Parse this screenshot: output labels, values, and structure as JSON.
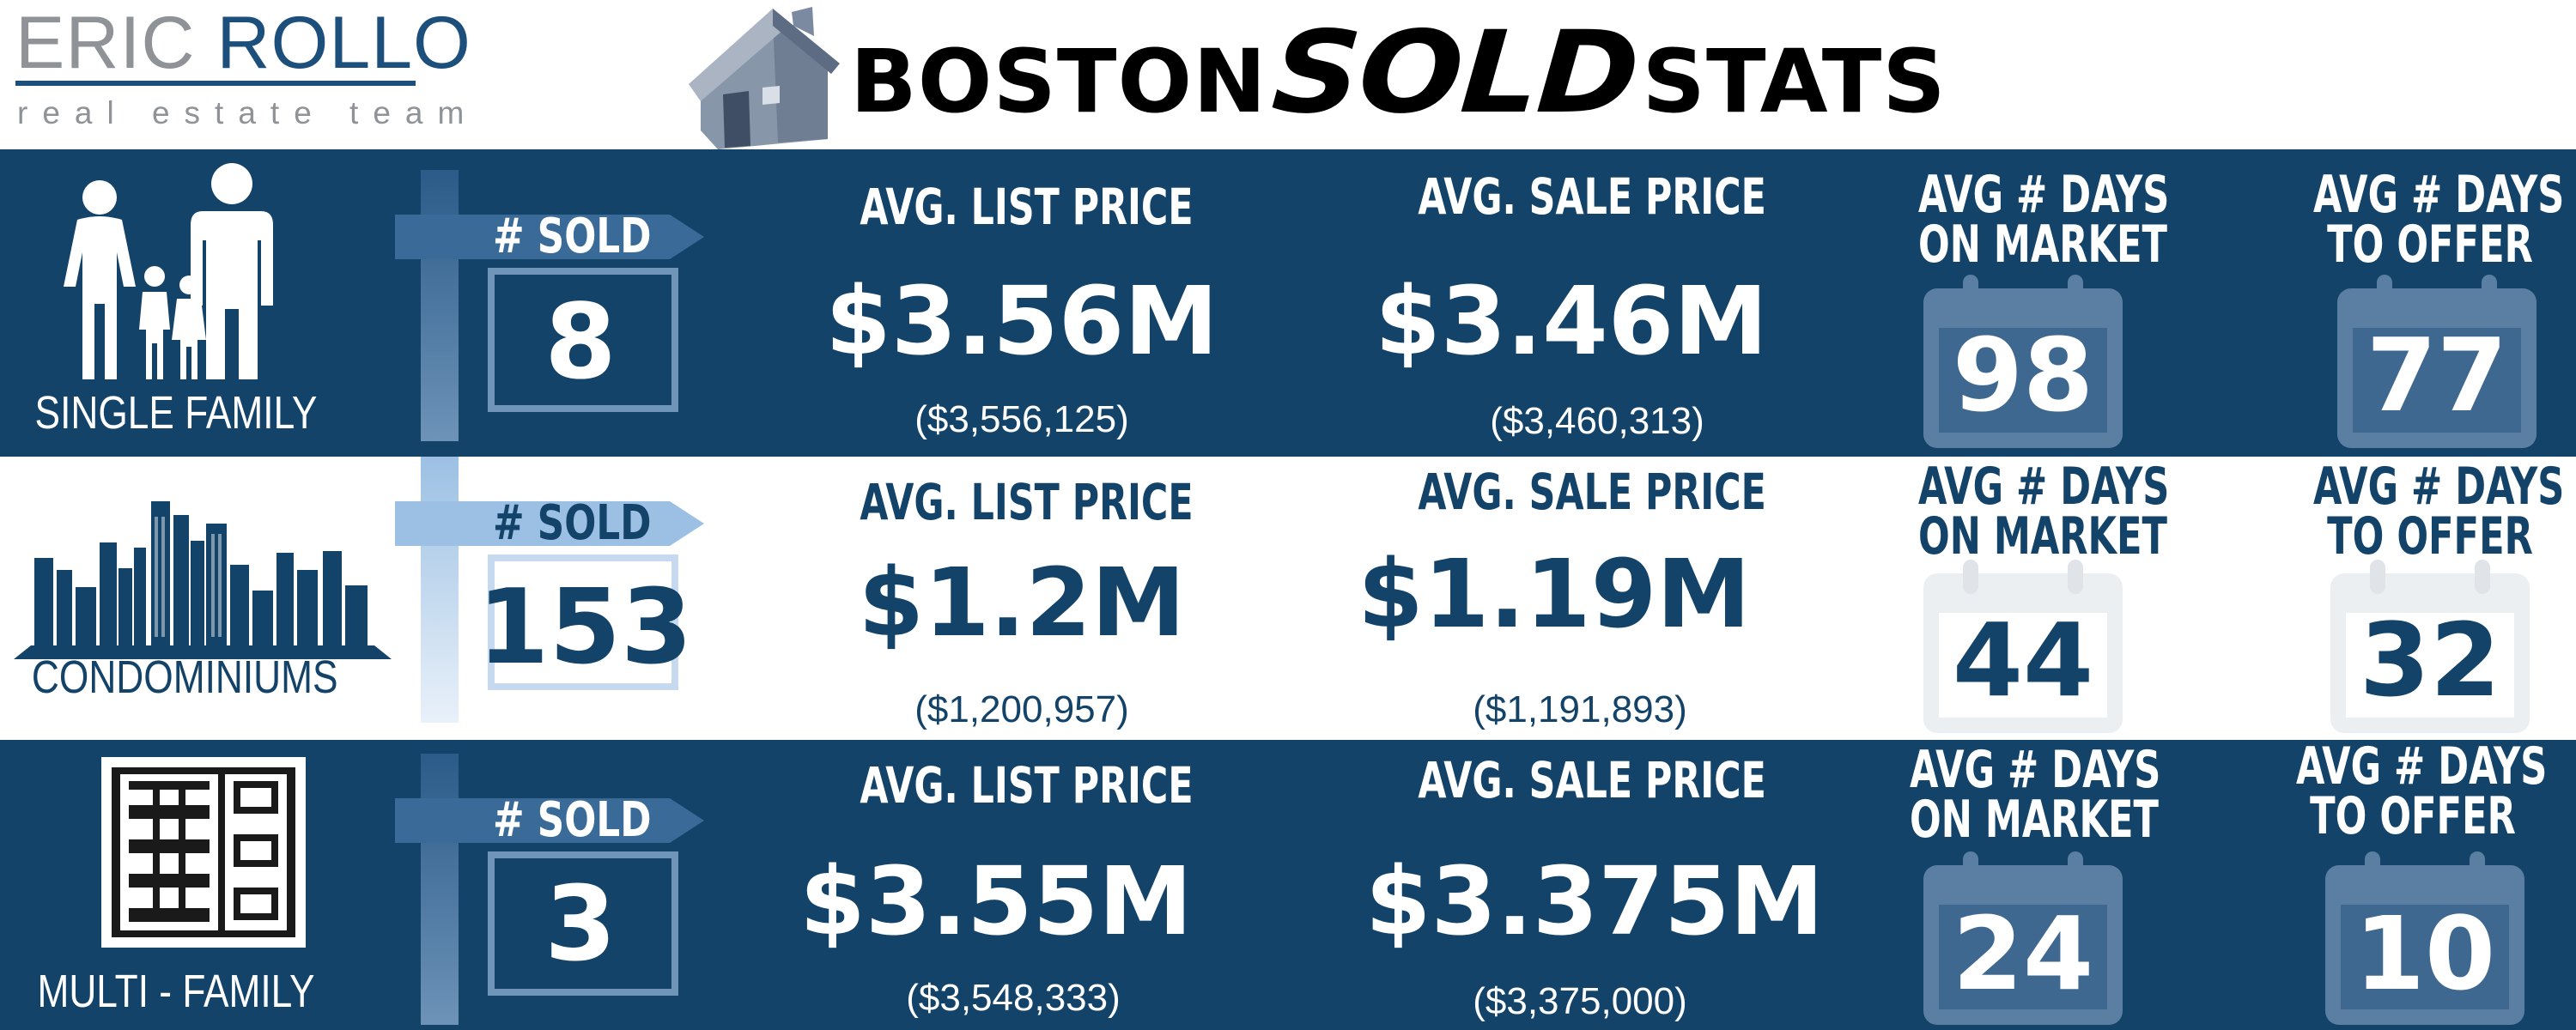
{
  "logo": {
    "name_first": "ERIC",
    "name_last": "ROLLO",
    "tagline": "real estate team"
  },
  "title": {
    "part1": "BOSTON",
    "part2": "SOLD",
    "part3": "STATS"
  },
  "colors": {
    "navy": "#134369",
    "white": "#ffffff",
    "gray": "#8f9397"
  },
  "rows": [
    {
      "type": "SINGLE FAMILY",
      "icon": "family-icon",
      "sold_label": "# SOLD",
      "sold": "8",
      "list_label": "AVG. LIST PRICE",
      "list_price": "$3.56M",
      "list_exact": "($3,556,125)",
      "sale_label": "AVG. SALE PRICE",
      "sale_price": "$3.46M",
      "sale_exact": "($3,460,313)",
      "dom_label_1": "AVG # DAYS",
      "dom_label_2": "ON MARKET",
      "dom": "98",
      "dto_label_1": "AVG  # DAYS",
      "dto_label_2": "TO OFFER",
      "dto": "77"
    },
    {
      "type": "CONDOMINIUMS",
      "icon": "city-skyline-icon",
      "sold_label": "# SOLD",
      "sold": "153",
      "list_label": "AVG. LIST PRICE",
      "list_price": "$1.2M",
      "list_exact": "($1,200,957)",
      "sale_label": "AVG. SALE PRICE",
      "sale_price": "$1.19M",
      "sale_exact": "($1,191,893)",
      "dom_label_1": "AVG # DAYS",
      "dom_label_2": "ON MARKET",
      "dom": "44",
      "dto_label_1": "AVG  # DAYS",
      "dto_label_2": "TO OFFER",
      "dto": "32"
    },
    {
      "type": "MULTI - FAMILY",
      "icon": "apartment-building-icon",
      "sold_label": "# SOLD",
      "sold": "3",
      "list_label": "AVG. LIST PRICE",
      "list_price": "$3.55M",
      "list_exact": "($3,548,333)",
      "sale_label": "AVG. SALE PRICE",
      "sale_price": "$3.375M",
      "sale_exact": "($3,375,000)",
      "dom_label_1": "AVG # DAYS",
      "dom_label_2": "ON MARKET",
      "dom": "24",
      "dto_label_1": "AVG  # DAYS",
      "dto_label_2": "TO OFFER",
      "dto": "10"
    }
  ]
}
